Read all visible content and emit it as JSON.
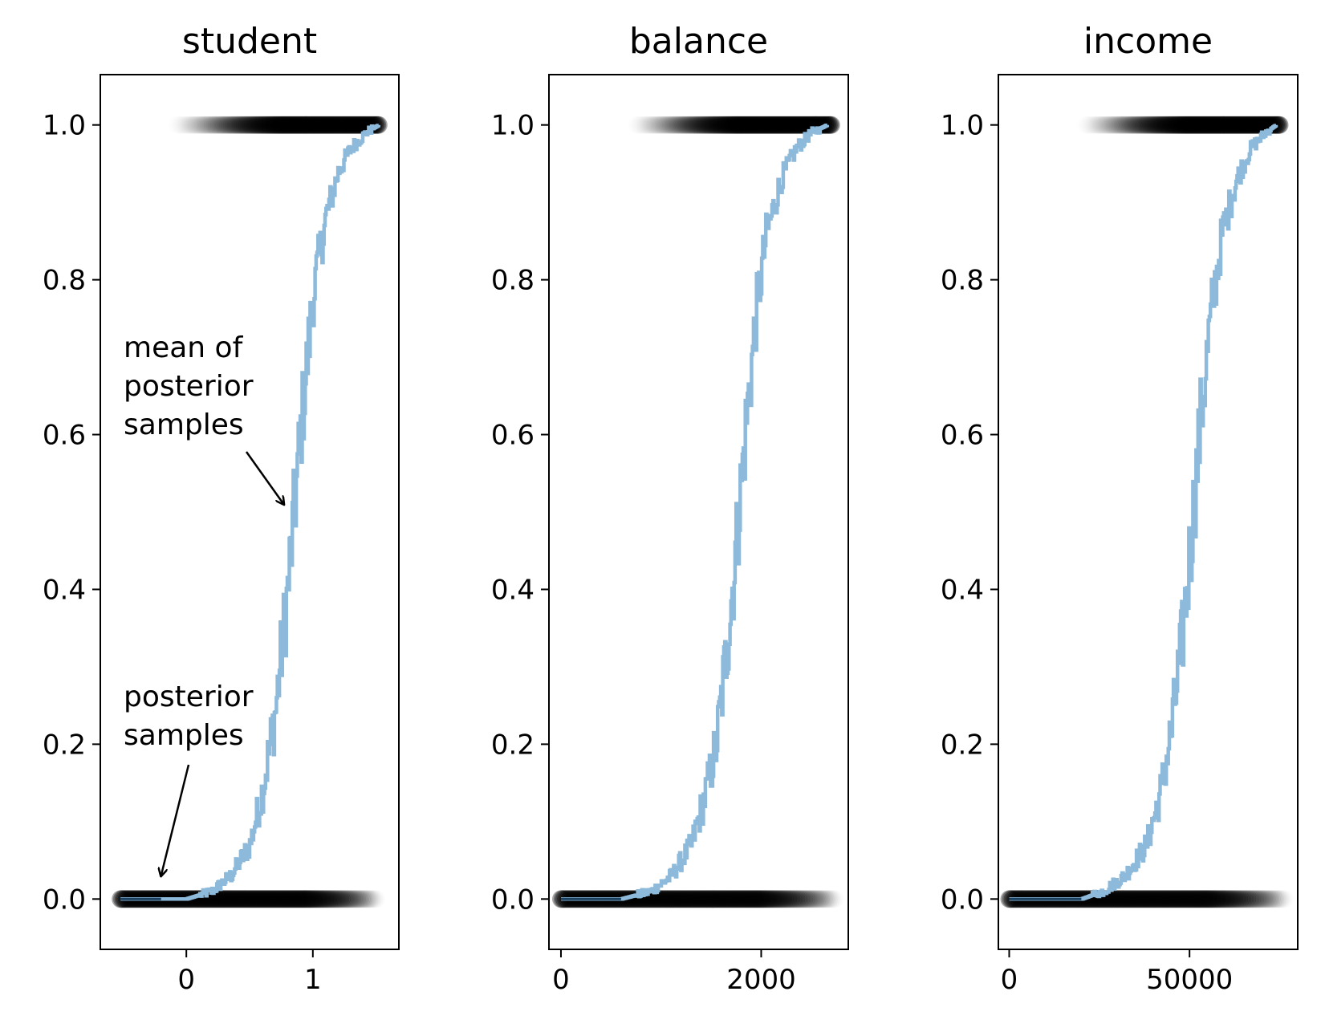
{
  "chart_data": [
    {
      "type": "scatter",
      "title": "student",
      "xlim": [
        -0.68,
        1.68
      ],
      "ylim": [
        -0.065,
        1.065
      ],
      "xticks": [
        0,
        1
      ],
      "yticks": [
        0.0,
        0.2,
        0.4,
        0.6,
        0.8,
        1.0
      ],
      "ytick_labels": [
        "0.0",
        "0.2",
        "0.4",
        "0.6",
        "0.8",
        "1.0"
      ],
      "points_zero_range": [
        -0.52,
        1.52
      ],
      "points_one_range": [
        -0.2,
        1.52
      ],
      "mean_curve": {
        "x": [
          -0.52,
          -0.2,
          0.0,
          0.2,
          0.35,
          0.5,
          0.6,
          0.7,
          0.8,
          0.9,
          1.0,
          1.1,
          1.2,
          1.3,
          1.42,
          1.52
        ],
        "y": [
          0.0,
          0.0,
          0.0,
          0.01,
          0.03,
          0.07,
          0.14,
          0.24,
          0.4,
          0.6,
          0.78,
          0.88,
          0.94,
          0.97,
          0.99,
          1.0
        ]
      },
      "annotations": [
        {
          "lines": [
            "mean of",
            "posterior",
            "samples"
          ],
          "arrow_to": [
            0.77,
            0.51
          ]
        },
        {
          "lines": [
            "posterior",
            "samples"
          ],
          "arrow_to": [
            -0.2,
            0.03
          ]
        }
      ]
    },
    {
      "type": "scatter",
      "title": "balance",
      "xlim": [
        -120,
        2870
      ],
      "ylim": [
        -0.065,
        1.065
      ],
      "xticks": [
        0,
        2000
      ],
      "yticks": [
        0.0,
        0.2,
        0.4,
        0.6,
        0.8,
        1.0
      ],
      "ytick_labels": [
        "0.0",
        "0.2",
        "0.4",
        "0.6",
        "0.8",
        "1.0"
      ],
      "points_zero_range": [
        0,
        2760
      ],
      "points_one_range": [
        600,
        2700
      ],
      "mean_curve": {
        "x": [
          0,
          600,
          900,
          1100,
          1300,
          1450,
          1550,
          1650,
          1750,
          1850,
          1950,
          2050,
          2200,
          2350,
          2500,
          2660
        ],
        "y": [
          0.0,
          0.0,
          0.01,
          0.03,
          0.07,
          0.14,
          0.2,
          0.32,
          0.46,
          0.62,
          0.76,
          0.86,
          0.93,
          0.97,
          0.99,
          1.0
        ]
      }
    },
    {
      "type": "scatter",
      "title": "income",
      "xlim": [
        -3000,
        80000
      ],
      "ylim": [
        -0.065,
        1.065
      ],
      "xticks": [
        0,
        50000
      ],
      "yticks": [
        0.0,
        0.2,
        0.4,
        0.6,
        0.8,
        1.0
      ],
      "ytick_labels": [
        "0.0",
        "0.2",
        "0.4",
        "0.6",
        "0.8",
        "1.0"
      ],
      "points_zero_range": [
        0,
        77000
      ],
      "points_one_range": [
        17000,
        75000
      ],
      "mean_curve": {
        "x": [
          0,
          20000,
          26000,
          32000,
          38000,
          42000,
          45000,
          48000,
          51000,
          53000,
          56000,
          59000,
          63000,
          67000,
          71000,
          74000
        ],
        "y": [
          0.0,
          0.0,
          0.01,
          0.03,
          0.07,
          0.14,
          0.22,
          0.34,
          0.5,
          0.62,
          0.76,
          0.86,
          0.93,
          0.97,
          0.99,
          1.0
        ]
      }
    }
  ],
  "colors": {
    "points": "#000000",
    "mean_curve": "#8dbadb",
    "overlap": "#1b3f5e"
  }
}
